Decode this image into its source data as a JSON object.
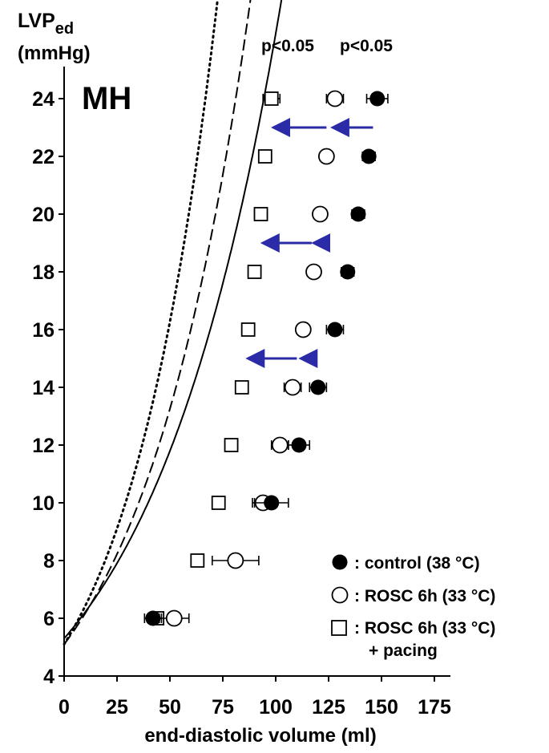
{
  "chart_data": {
    "type": "scatter",
    "panel_label": "MH",
    "ylabel_main": "LVP",
    "ylabel_sub": "ed",
    "ylabel_unit": "(mmHg)",
    "xlabel": "end-diastolic volume (ml)",
    "xlim": [
      0,
      175
    ],
    "ylim": [
      4,
      25
    ],
    "x_ticks": [
      0,
      25,
      50,
      75,
      100,
      125,
      150,
      175
    ],
    "y_ticks": [
      4,
      6,
      8,
      10,
      12,
      14,
      16,
      18,
      20,
      22,
      24
    ],
    "grid": false,
    "annotations": [
      "p<0.05",
      "p<0.05"
    ],
    "series": [
      {
        "name": ": control (38 °C)",
        "marker": "filled-circle",
        "color": "#000000",
        "line": "solid",
        "points": [
          {
            "x": 42,
            "y": 6,
            "xerr": 4
          },
          {
            "x": 98,
            "y": 10,
            "xerr": 8
          },
          {
            "x": 111,
            "y": 12,
            "xerr": 5
          },
          {
            "x": 120,
            "y": 14,
            "xerr": 4
          },
          {
            "x": 128,
            "y": 16,
            "xerr": 4
          },
          {
            "x": 134,
            "y": 18,
            "xerr": 3
          },
          {
            "x": 139,
            "y": 20,
            "xerr": 3
          },
          {
            "x": 144,
            "y": 22,
            "xerr": 3
          },
          {
            "x": 148,
            "y": 24,
            "xerr": 5
          }
        ],
        "curve": {
          "a": 5.3,
          "b": 0.016,
          "x": [
            0,
            155
          ]
        }
      },
      {
        "name": ": ROSC 6h (33 °C)",
        "marker": "open-circle",
        "color": "#000000",
        "line": "dashed",
        "points": [
          {
            "x": 52,
            "y": 6,
            "xerr": 7
          },
          {
            "x": 81,
            "y": 8,
            "xerr": 11
          },
          {
            "x": 94,
            "y": 10,
            "xerr": 5
          },
          {
            "x": 102,
            "y": 12,
            "xerr": 4
          },
          {
            "x": 108,
            "y": 14,
            "xerr": 4
          },
          {
            "x": 113,
            "y": 16,
            "xerr": 3
          },
          {
            "x": 118,
            "y": 18,
            "xerr": 3
          },
          {
            "x": 121,
            "y": 20,
            "xerr": 3
          },
          {
            "x": 124,
            "y": 22,
            "xerr": 3
          },
          {
            "x": 128,
            "y": 24,
            "xerr": 4
          }
        ],
        "curve": {
          "a": 5.1,
          "b": 0.0191,
          "x": [
            0,
            132
          ]
        }
      },
      {
        "name": ": ROSC 6h (33 °C)",
        "name_line2": "+ pacing",
        "marker": "open-square",
        "color": "#000000",
        "line": "dotted",
        "points": [
          {
            "x": 44,
            "y": 6,
            "xerr": 3
          },
          {
            "x": 63,
            "y": 8,
            "xerr": 3
          },
          {
            "x": 73,
            "y": 10,
            "xerr": 3
          },
          {
            "x": 79,
            "y": 12,
            "xerr": 3
          },
          {
            "x": 84,
            "y": 14,
            "xerr": 3
          },
          {
            "x": 87,
            "y": 16,
            "xerr": 3
          },
          {
            "x": 90,
            "y": 18,
            "xerr": 3
          },
          {
            "x": 93,
            "y": 20,
            "xerr": 3
          },
          {
            "x": 95,
            "y": 22,
            "xerr": 3
          },
          {
            "x": 98,
            "y": 24,
            "xerr": 4
          }
        ],
        "curve": {
          "a": 5.1,
          "b": 0.0232,
          "x": [
            0,
            99
          ]
        }
      }
    ],
    "arrows": [
      {
        "y": 23,
        "segments": [
          [
            146,
            128
          ],
          [
            124,
            100
          ]
        ]
      },
      {
        "y": 19,
        "segments": [
          [
            122,
            119
          ],
          [
            117,
            95
          ]
        ]
      },
      {
        "y": 15,
        "segments": [
          [
            110,
            88
          ],
          [
            115,
            113
          ]
        ]
      }
    ],
    "arrow_color": "#2b2ba8"
  }
}
